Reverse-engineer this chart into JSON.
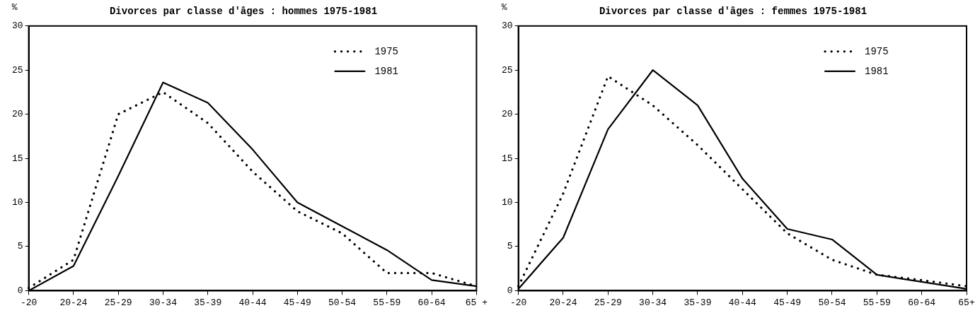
{
  "chart_data": [
    {
      "type": "line",
      "title": "Divorces par classe d'âges : hommes 1975-1981",
      "ylabel": "%",
      "categories": [
        "-20",
        "20-24",
        "25-29",
        "30-34",
        "35-39",
        "40-44",
        "45-49",
        "50-54",
        "55-59",
        "60-64",
        "65 +"
      ],
      "series": [
        {
          "name": "1975",
          "color": "#000000",
          "line_style": "dotted",
          "values": [
            0.3,
            3.5,
            20,
            22.5,
            19,
            13.5,
            9,
            6.5,
            2,
            2,
            0.5
          ]
        },
        {
          "name": "1981",
          "color": "#000000",
          "line_style": "solid",
          "values": [
            0,
            2.8,
            13,
            23.6,
            21.3,
            16,
            10,
            7.3,
            4.6,
            1.2,
            0.5
          ]
        }
      ],
      "ylim": [
        0,
        30
      ],
      "yticks": [
        0,
        5,
        10,
        15,
        20,
        25,
        30
      ],
      "grid": false,
      "legend": "top right",
      "marker": "none"
    },
    {
      "type": "line",
      "title": "Divorces par classe d'âges : femmes 1975-1981",
      "ylabel": "%",
      "categories": [
        "-20",
        "20-24",
        "25-29",
        "30-34",
        "35-39",
        "40-44",
        "45-49",
        "50-54",
        "55-59",
        "60-64",
        "65+"
      ],
      "series": [
        {
          "name": "1975",
          "color": "#000000",
          "line_style": "dotted",
          "values": [
            0.5,
            11,
            24.3,
            21,
            16.5,
            11.5,
            6.5,
            3.5,
            1.8,
            1.2,
            0.5
          ]
        },
        {
          "name": "1981",
          "color": "#000000",
          "line_style": "solid",
          "values": [
            0.2,
            6,
            18.3,
            25,
            21,
            12.7,
            7,
            5.8,
            1.8,
            1,
            0.2
          ]
        }
      ],
      "ylim": [
        0,
        30
      ],
      "yticks": [
        0,
        5,
        10,
        15,
        20,
        25,
        30
      ],
      "grid": false,
      "legend": "top right",
      "marker": "none"
    }
  ]
}
